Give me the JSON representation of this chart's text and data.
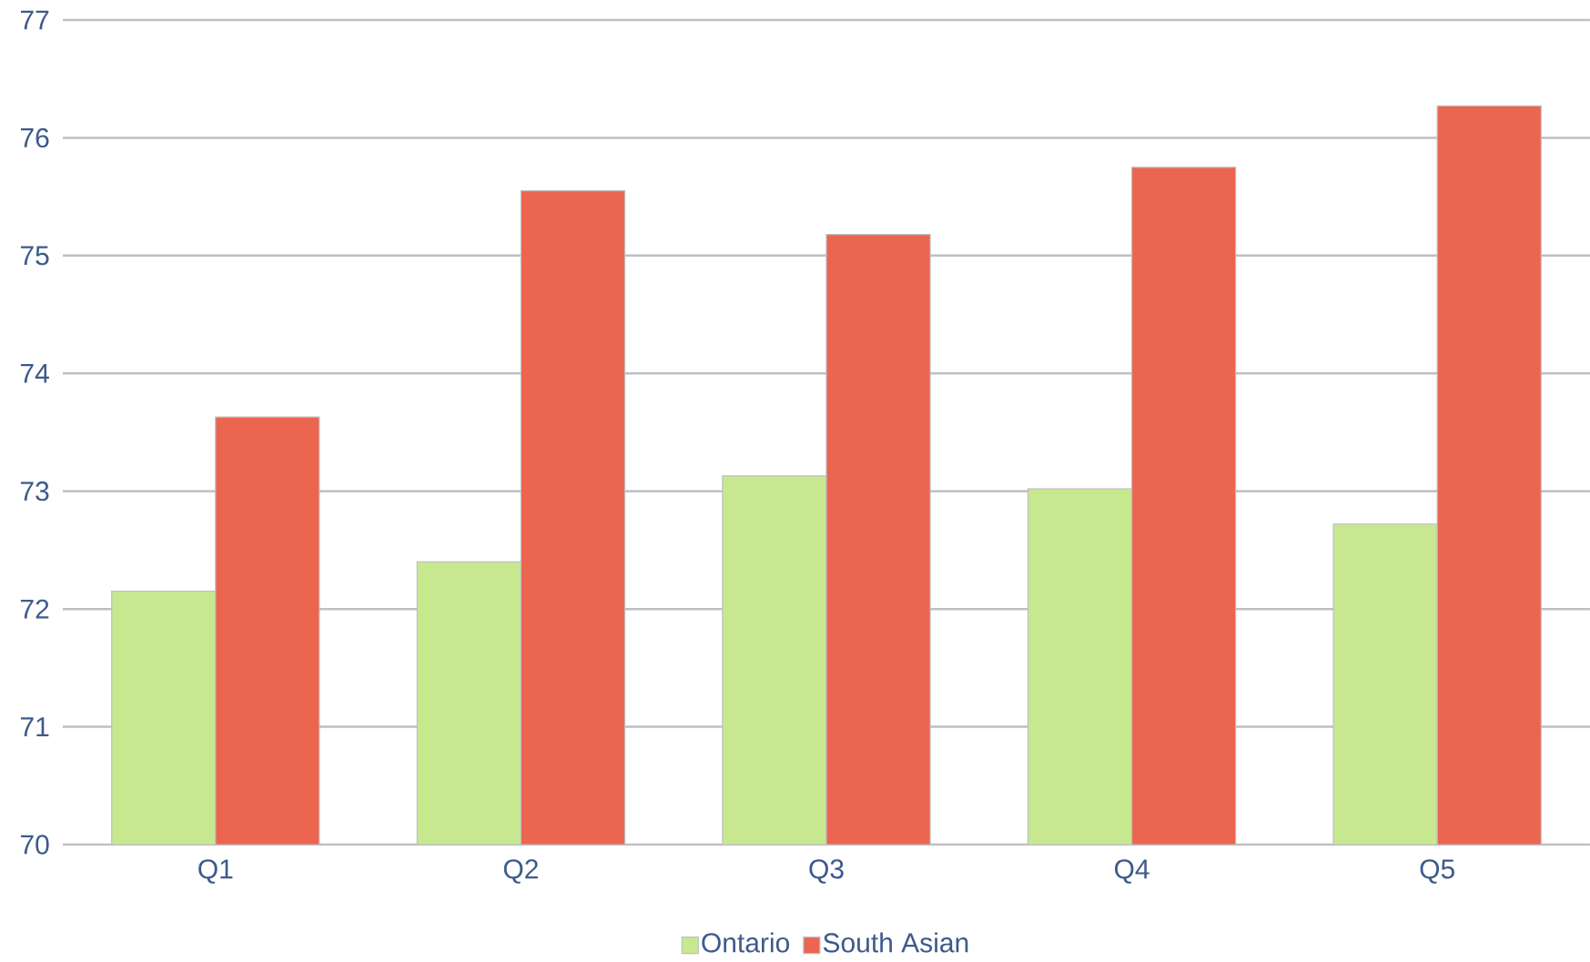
{
  "chart_data": {
    "type": "bar",
    "categories": [
      "Q1",
      "Q2",
      "Q3",
      "Q4",
      "Q5"
    ],
    "series": [
      {
        "name": "Ontario",
        "color": "#c8e890",
        "values": [
          72.15,
          72.4,
          73.13,
          73.02,
          72.72
        ]
      },
      {
        "name": "South Asian",
        "color": "#eb654f",
        "values": [
          73.63,
          75.55,
          75.18,
          75.75,
          76.27
        ]
      }
    ],
    "ylim": [
      70,
      77
    ],
    "yticks": [
      70,
      71,
      72,
      73,
      74,
      75,
      76,
      77
    ],
    "grid": "y",
    "legend": "bottom"
  }
}
